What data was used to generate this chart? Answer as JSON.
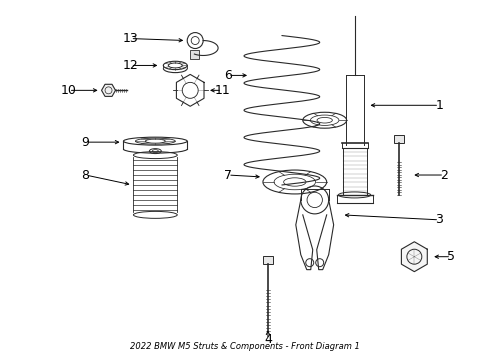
{
  "title": "2022 BMW M5 Struts & Components - Front Diagram 1",
  "background_color": "#ffffff",
  "line_color": "#2a2a2a",
  "label_color": "#000000",
  "fig_width": 4.9,
  "fig_height": 3.6,
  "dpi": 100
}
